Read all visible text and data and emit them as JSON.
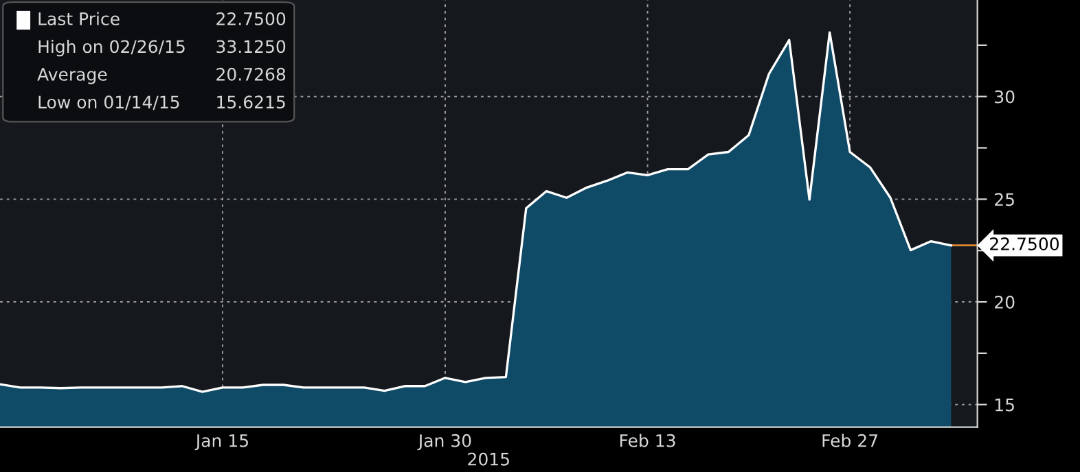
{
  "chart_data": {
    "type": "area",
    "xlabel": "2015",
    "categories": [
      null,
      null,
      null,
      null,
      null,
      null,
      null,
      null,
      null,
      null,
      null,
      "Jan 15",
      null,
      null,
      null,
      null,
      null,
      null,
      null,
      null,
      null,
      null,
      "Jan 30",
      null,
      null,
      null,
      null,
      null,
      null,
      null,
      null,
      null,
      "Feb 13",
      null,
      null,
      null,
      null,
      null,
      null,
      null,
      null,
      null,
      "Feb 27",
      null,
      null,
      null,
      null,
      null
    ],
    "series": [
      {
        "name": "Last Price",
        "color": "#ffffff",
        "values": [
          15.99,
          15.83,
          15.83,
          15.8,
          15.83,
          15.83,
          15.83,
          15.83,
          15.83,
          15.9,
          15.62,
          15.83,
          15.83,
          15.96,
          15.96,
          15.83,
          15.83,
          15.83,
          15.83,
          15.67,
          15.9,
          15.9,
          16.3,
          16.1,
          16.3,
          16.34,
          24.56,
          25.39,
          25.07,
          25.57,
          25.9,
          26.3,
          26.17,
          26.46,
          26.46,
          27.18,
          27.3,
          28.12,
          31.1,
          32.75,
          24.98,
          33.12,
          27.3,
          26.55,
          25.07,
          22.52,
          22.95,
          22.75
        ]
      }
    ],
    "ylim": [
      13.9,
      34.7
    ],
    "yticks": [
      15,
      {
        "value": 17.5,
        "label": null
      },
      20,
      {
        "value": 22.5,
        "label": null
      },
      25,
      {
        "value": 27.5,
        "label": null
      },
      30,
      {
        "value": 32.5,
        "label": null
      }
    ],
    "grid": true,
    "legend": "top left",
    "annotations": [
      "22.7500",
      "22.7500",
      "High on 02/26/15",
      "33.1250",
      "Average",
      "20.7268",
      "Low on 01/14/15",
      "15.6215"
    ]
  }
}
